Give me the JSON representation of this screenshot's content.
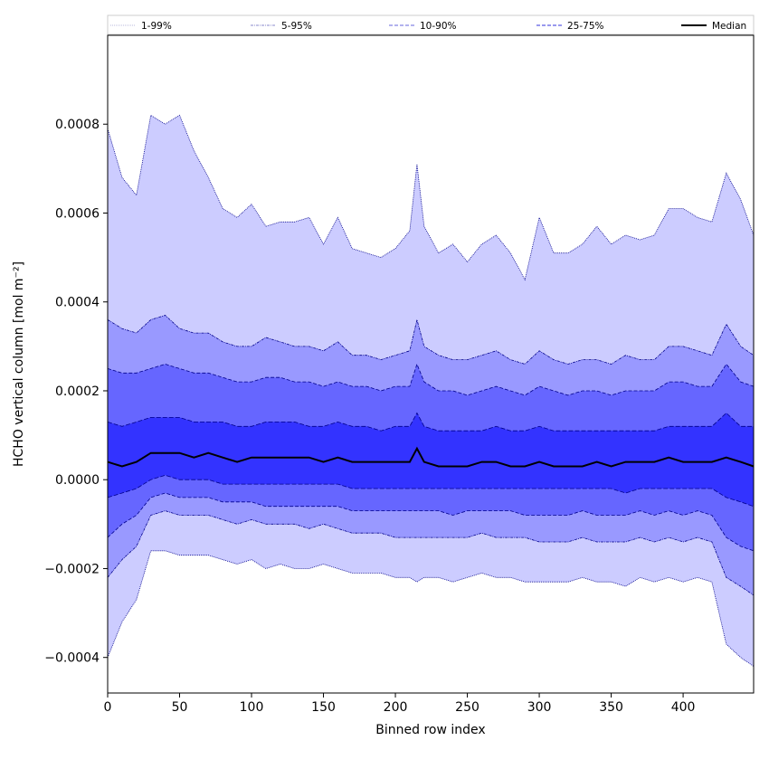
{
  "chart_data": {
    "type": "area",
    "xlabel": "Binned row index",
    "ylabel": "HCHO vertical column [mol m⁻²]",
    "xlim": [
      0,
      449
    ],
    "ylim": [
      -0.00048,
      0.001
    ],
    "x_ticks": [
      0,
      50,
      100,
      150,
      200,
      250,
      300,
      350,
      400
    ],
    "x_tick_labels": [
      "0",
      "50",
      "100",
      "150",
      "200",
      "250",
      "300",
      "350",
      "400"
    ],
    "y_ticks": [
      -0.0004,
      -0.0002,
      0.0,
      0.0002,
      0.0004,
      0.0006,
      0.0008
    ],
    "y_tick_labels": [
      "−0.0004",
      "−0.0002",
      "0.0000",
      "0.0002",
      "0.0004",
      "0.0006",
      "0.0008"
    ],
    "grid": false,
    "legend_position": "top",
    "colors": {
      "band_1_99": "#ccccff",
      "band_5_95": "#9999ff",
      "band_10_90": "#6666ff",
      "band_25_75": "#3333ff",
      "line_1_99": "#ccccff",
      "line_5_95": "#9999ff",
      "line_10_90": "#6666ff",
      "line_25_75": "#3333ff",
      "line_dark": "#00008b",
      "median": "#000000"
    },
    "legend": [
      {
        "label": "1-99%",
        "style": "dotted",
        "color": "#bbbbdd"
      },
      {
        "label": "5-95%",
        "style": "dashdot",
        "color": "#8888cc"
      },
      {
        "label": "10-90%",
        "style": "dashed",
        "color": "#6666dd"
      },
      {
        "label": "25-75%",
        "style": "dashed",
        "color": "#3333dd"
      },
      {
        "label": "Median",
        "style": "solid",
        "color": "#000000"
      }
    ],
    "x": [
      0,
      10,
      20,
      30,
      40,
      50,
      60,
      70,
      80,
      90,
      100,
      110,
      120,
      130,
      140,
      150,
      160,
      170,
      180,
      190,
      200,
      210,
      215,
      220,
      230,
      240,
      250,
      260,
      270,
      280,
      290,
      300,
      310,
      320,
      330,
      340,
      350,
      360,
      370,
      380,
      390,
      400,
      410,
      420,
      430,
      440,
      449
    ],
    "series": [
      {
        "name": "1-99%",
        "type": "band",
        "upper": [
          0.00079,
          0.00068,
          0.00064,
          0.00082,
          0.0008,
          0.00082,
          0.00074,
          0.00068,
          0.00061,
          0.00059,
          0.00062,
          0.00057,
          0.00058,
          0.00058,
          0.00059,
          0.00053,
          0.00059,
          0.00052,
          0.00051,
          0.0005,
          0.00052,
          0.00056,
          0.00071,
          0.00057,
          0.00051,
          0.00053,
          0.00049,
          0.00053,
          0.00055,
          0.00051,
          0.00045,
          0.00059,
          0.00051,
          0.00051,
          0.00053,
          0.00057,
          0.00053,
          0.00055,
          0.00054,
          0.00055,
          0.00061,
          0.00061,
          0.00059,
          0.00058,
          0.00069,
          0.00063,
          0.00055
        ],
        "lower": [
          -0.0004,
          -0.00032,
          -0.00027,
          -0.00016,
          -0.00016,
          -0.00017,
          -0.00017,
          -0.00017,
          -0.00018,
          -0.00019,
          -0.00018,
          -0.0002,
          -0.00019,
          -0.0002,
          -0.0002,
          -0.00019,
          -0.0002,
          -0.00021,
          -0.00021,
          -0.00021,
          -0.00022,
          -0.00022,
          -0.00023,
          -0.00022,
          -0.00022,
          -0.00023,
          -0.00022,
          -0.00021,
          -0.00022,
          -0.00022,
          -0.00023,
          -0.00023,
          -0.00023,
          -0.00023,
          -0.00022,
          -0.00023,
          -0.00023,
          -0.00024,
          -0.00022,
          -0.00023,
          -0.00022,
          -0.00023,
          -0.00022,
          -0.00023,
          -0.00037,
          -0.0004,
          -0.00042
        ]
      },
      {
        "name": "5-95%",
        "type": "band",
        "upper": [
          0.00036,
          0.00034,
          0.00033,
          0.00036,
          0.00037,
          0.00034,
          0.00033,
          0.00033,
          0.00031,
          0.0003,
          0.0003,
          0.00032,
          0.00031,
          0.0003,
          0.0003,
          0.00029,
          0.00031,
          0.00028,
          0.00028,
          0.00027,
          0.00028,
          0.00029,
          0.00036,
          0.0003,
          0.00028,
          0.00027,
          0.00027,
          0.00028,
          0.00029,
          0.00027,
          0.00026,
          0.00029,
          0.00027,
          0.00026,
          0.00027,
          0.00027,
          0.00026,
          0.00028,
          0.00027,
          0.00027,
          0.0003,
          0.0003,
          0.00029,
          0.00028,
          0.00035,
          0.0003,
          0.00028
        ],
        "lower": [
          -0.00022,
          -0.00018,
          -0.00015,
          -8e-05,
          -7e-05,
          -8e-05,
          -8e-05,
          -8e-05,
          -9e-05,
          -0.0001,
          -9e-05,
          -0.0001,
          -0.0001,
          -0.0001,
          -0.00011,
          -0.0001,
          -0.00011,
          -0.00012,
          -0.00012,
          -0.00012,
          -0.00013,
          -0.00013,
          -0.00013,
          -0.00013,
          -0.00013,
          -0.00013,
          -0.00013,
          -0.00012,
          -0.00013,
          -0.00013,
          -0.00013,
          -0.00014,
          -0.00014,
          -0.00014,
          -0.00013,
          -0.00014,
          -0.00014,
          -0.00014,
          -0.00013,
          -0.00014,
          -0.00013,
          -0.00014,
          -0.00013,
          -0.00014,
          -0.00022,
          -0.00024,
          -0.00026
        ]
      },
      {
        "name": "10-90%",
        "type": "band",
        "upper": [
          0.00025,
          0.00024,
          0.00024,
          0.00025,
          0.00026,
          0.00025,
          0.00024,
          0.00024,
          0.00023,
          0.00022,
          0.00022,
          0.00023,
          0.00023,
          0.00022,
          0.00022,
          0.00021,
          0.00022,
          0.00021,
          0.00021,
          0.0002,
          0.00021,
          0.00021,
          0.00026,
          0.00022,
          0.0002,
          0.0002,
          0.00019,
          0.0002,
          0.00021,
          0.0002,
          0.00019,
          0.00021,
          0.0002,
          0.00019,
          0.0002,
          0.0002,
          0.00019,
          0.0002,
          0.0002,
          0.0002,
          0.00022,
          0.00022,
          0.00021,
          0.00021,
          0.00026,
          0.00022,
          0.00021
        ],
        "lower": [
          -0.00013,
          -0.0001,
          -8e-05,
          -4e-05,
          -3e-05,
          -4e-05,
          -4e-05,
          -4e-05,
          -5e-05,
          -5e-05,
          -5e-05,
          -6e-05,
          -6e-05,
          -6e-05,
          -6e-05,
          -6e-05,
          -6e-05,
          -7e-05,
          -7e-05,
          -7e-05,
          -7e-05,
          -7e-05,
          -7e-05,
          -7e-05,
          -7e-05,
          -8e-05,
          -7e-05,
          -7e-05,
          -7e-05,
          -7e-05,
          -8e-05,
          -8e-05,
          -8e-05,
          -8e-05,
          -7e-05,
          -8e-05,
          -8e-05,
          -8e-05,
          -7e-05,
          -8e-05,
          -7e-05,
          -8e-05,
          -7e-05,
          -8e-05,
          -0.00013,
          -0.00015,
          -0.00016
        ]
      },
      {
        "name": "25-75%",
        "type": "band",
        "upper": [
          0.00013,
          0.00012,
          0.00013,
          0.00014,
          0.00014,
          0.00014,
          0.00013,
          0.00013,
          0.00013,
          0.00012,
          0.00012,
          0.00013,
          0.00013,
          0.00013,
          0.00012,
          0.00012,
          0.00013,
          0.00012,
          0.00012,
          0.00011,
          0.00012,
          0.00012,
          0.00015,
          0.00012,
          0.00011,
          0.00011,
          0.00011,
          0.00011,
          0.00012,
          0.00011,
          0.00011,
          0.00012,
          0.00011,
          0.00011,
          0.00011,
          0.00011,
          0.00011,
          0.00011,
          0.00011,
          0.00011,
          0.00012,
          0.00012,
          0.00012,
          0.00012,
          0.00015,
          0.00012,
          0.00012
        ],
        "lower": [
          -4e-05,
          -3e-05,
          -2e-05,
          0.0,
          1e-05,
          0.0,
          0.0,
          0.0,
          -1e-05,
          -1e-05,
          -1e-05,
          -1e-05,
          -1e-05,
          -1e-05,
          -1e-05,
          -1e-05,
          -1e-05,
          -2e-05,
          -2e-05,
          -2e-05,
          -2e-05,
          -2e-05,
          -2e-05,
          -2e-05,
          -2e-05,
          -2e-05,
          -2e-05,
          -2e-05,
          -2e-05,
          -2e-05,
          -2e-05,
          -2e-05,
          -2e-05,
          -2e-05,
          -2e-05,
          -2e-05,
          -2e-05,
          -3e-05,
          -2e-05,
          -2e-05,
          -2e-05,
          -2e-05,
          -2e-05,
          -2e-05,
          -4e-05,
          -5e-05,
          -6e-05
        ]
      },
      {
        "name": "Median",
        "type": "line",
        "values": [
          4e-05,
          3e-05,
          4e-05,
          6e-05,
          6e-05,
          6e-05,
          5e-05,
          6e-05,
          5e-05,
          4e-05,
          5e-05,
          5e-05,
          5e-05,
          5e-05,
          5e-05,
          4e-05,
          5e-05,
          4e-05,
          4e-05,
          4e-05,
          4e-05,
          4e-05,
          7e-05,
          4e-05,
          3e-05,
          3e-05,
          3e-05,
          4e-05,
          4e-05,
          3e-05,
          3e-05,
          4e-05,
          3e-05,
          3e-05,
          3e-05,
          4e-05,
          3e-05,
          4e-05,
          4e-05,
          4e-05,
          5e-05,
          4e-05,
          4e-05,
          4e-05,
          5e-05,
          4e-05,
          3e-05
        ]
      }
    ]
  }
}
